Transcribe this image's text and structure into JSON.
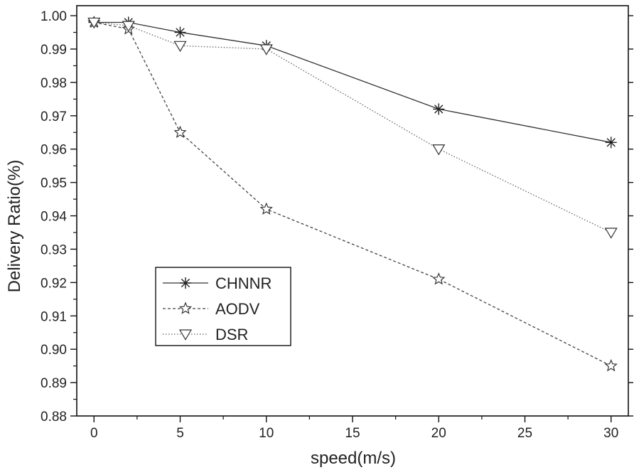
{
  "chart_data": {
    "type": "line",
    "title": "",
    "xlabel": "speed(m/s)",
    "ylabel": "Delivery Ratio(%)",
    "xlim": [
      -1,
      31
    ],
    "ylim": [
      0.88,
      1.003
    ],
    "xticks": [
      0,
      5,
      10,
      15,
      20,
      25,
      30
    ],
    "yticks": [
      0.88,
      0.89,
      0.9,
      0.91,
      0.92,
      0.93,
      0.94,
      0.95,
      0.96,
      0.97,
      0.98,
      0.99,
      1.0
    ],
    "xtick_labels": [
      "0",
      "5",
      "10",
      "15",
      "20",
      "25",
      "30"
    ],
    "ytick_labels": [
      "0.88",
      "0.89",
      "0.90",
      "0.91",
      "0.92",
      "0.93",
      "0.94",
      "0.95",
      "0.96",
      "0.97",
      "0.98",
      "0.99",
      "1.00"
    ],
    "grid": false,
    "legend_position": "lower-left",
    "series": [
      {
        "name": "CHNNR",
        "marker": "asterisk",
        "line_style": "solid",
        "x": [
          0,
          2,
          5,
          10,
          20,
          30
        ],
        "y": [
          0.998,
          0.998,
          0.995,
          0.991,
          0.972,
          0.962
        ]
      },
      {
        "name": "AODV",
        "marker": "star",
        "line_style": "dashed",
        "x": [
          0,
          2,
          5,
          10,
          20,
          30
        ],
        "y": [
          0.998,
          0.996,
          0.965,
          0.942,
          0.921,
          0.895
        ]
      },
      {
        "name": "DSR",
        "marker": "triangle-down",
        "line_style": "dotted",
        "x": [
          0,
          2,
          5,
          10,
          20,
          30
        ],
        "y": [
          0.998,
          0.997,
          0.991,
          0.99,
          0.96,
          0.935
        ]
      }
    ]
  }
}
